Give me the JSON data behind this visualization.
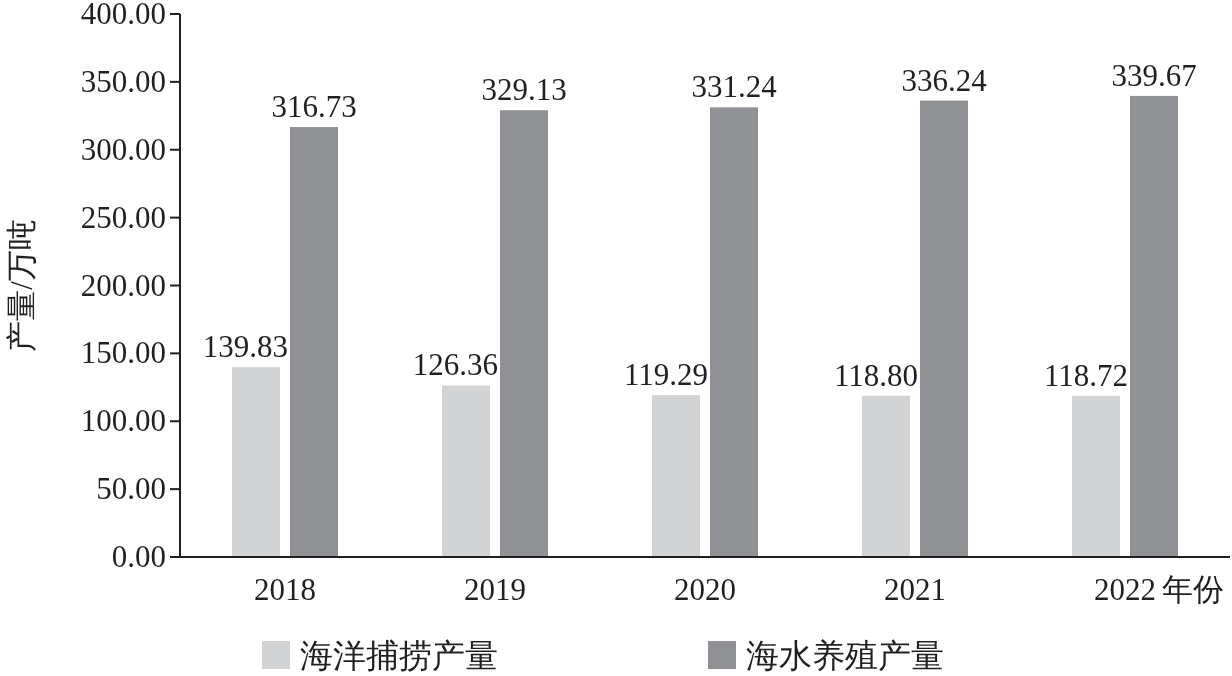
{
  "chart_data": {
    "type": "bar",
    "xlabel": "年份",
    "ylabel": "产量/万吨",
    "categories": [
      "2018",
      "2019",
      "2020",
      "2021",
      "2022"
    ],
    "series": [
      {
        "name": "海洋捕捞产量",
        "color": "#d1d3d4",
        "values": [
          139.83,
          126.36,
          119.29,
          118.8,
          118.72
        ],
        "value_labels": [
          "139.83",
          "126.36",
          "119.29",
          "118.80",
          "118.72"
        ]
      },
      {
        "name": "海水养殖产量",
        "color": "#909194",
        "values": [
          316.73,
          329.13,
          331.24,
          336.24,
          339.67
        ],
        "value_labels": [
          "316.73",
          "329.13",
          "331.24",
          "336.24",
          "339.67"
        ]
      }
    ],
    "ylim": [
      0,
      400
    ],
    "yticks": [
      {
        "value": 0,
        "label": "0.00"
      },
      {
        "value": 50,
        "label": "50.00"
      },
      {
        "value": 100,
        "label": "100.00"
      },
      {
        "value": 150,
        "label": "150.00"
      },
      {
        "value": 200,
        "label": "200.00"
      },
      {
        "value": 250,
        "label": "250.00"
      },
      {
        "value": 300,
        "label": "300.00"
      },
      {
        "value": 350,
        "label": "350.00"
      },
      {
        "value": 400,
        "label": "400.00"
      }
    ],
    "grid": false,
    "legend": "bottom"
  }
}
